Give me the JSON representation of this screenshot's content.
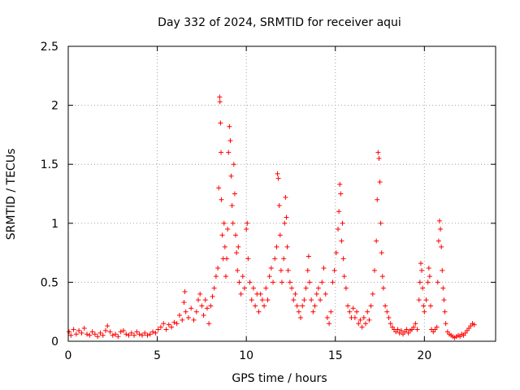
{
  "chart_data": {
    "type": "scatter",
    "title": "Day 332 of 2024, SRMTID for receiver aqui",
    "xlabel": "GPS time / hours",
    "ylabel": "SRMTID / TECUs",
    "xlim": [
      0,
      24
    ],
    "ylim": [
      0,
      2.5
    ],
    "xticks": [
      0,
      5,
      10,
      15,
      20
    ],
    "xtick_labels": [
      "0",
      "5",
      "10",
      "15",
      "20"
    ],
    "yticks": [
      0,
      0.5,
      1,
      1.5,
      2,
      2.5
    ],
    "ytick_labels": [
      "0",
      "0.5",
      "1",
      "1.5",
      "2",
      "2.5"
    ],
    "grid": true,
    "marker": "+",
    "series": [
      {
        "name": "SRMTID",
        "color": "#ff0000",
        "points": [
          [
            0.05,
            0.08
          ],
          [
            0.15,
            0.05
          ],
          [
            0.3,
            0.1
          ],
          [
            0.45,
            0.06
          ],
          [
            0.6,
            0.09
          ],
          [
            0.75,
            0.07
          ],
          [
            0.9,
            0.11
          ],
          [
            1.05,
            0.06
          ],
          [
            1.2,
            0.05
          ],
          [
            1.35,
            0.08
          ],
          [
            1.5,
            0.06
          ],
          [
            1.65,
            0.04
          ],
          [
            1.8,
            0.07
          ],
          [
            1.95,
            0.05
          ],
          [
            2.1,
            0.09
          ],
          [
            2.2,
            0.13
          ],
          [
            2.35,
            0.08
          ],
          [
            2.5,
            0.05
          ],
          [
            2.65,
            0.06
          ],
          [
            2.8,
            0.04
          ],
          [
            2.95,
            0.08
          ],
          [
            3.1,
            0.09
          ],
          [
            3.25,
            0.06
          ],
          [
            3.4,
            0.05
          ],
          [
            3.55,
            0.07
          ],
          [
            3.7,
            0.05
          ],
          [
            3.85,
            0.08
          ],
          [
            4.0,
            0.06
          ],
          [
            4.15,
            0.05
          ],
          [
            4.3,
            0.07
          ],
          [
            4.45,
            0.05
          ],
          [
            4.6,
            0.06
          ],
          [
            4.75,
            0.08
          ],
          [
            4.9,
            0.07
          ],
          [
            5.05,
            0.1
          ],
          [
            5.2,
            0.12
          ],
          [
            5.35,
            0.15
          ],
          [
            5.5,
            0.1
          ],
          [
            5.65,
            0.14
          ],
          [
            5.8,
            0.12
          ],
          [
            5.95,
            0.16
          ],
          [
            6.1,
            0.15
          ],
          [
            6.25,
            0.22
          ],
          [
            6.4,
            0.18
          ],
          [
            6.5,
            0.33
          ],
          [
            6.55,
            0.42
          ],
          [
            6.6,
            0.25
          ],
          [
            6.75,
            0.2
          ],
          [
            6.9,
            0.28
          ],
          [
            7.05,
            0.18
          ],
          [
            7.2,
            0.25
          ],
          [
            7.3,
            0.35
          ],
          [
            7.4,
            0.4
          ],
          [
            7.5,
            0.3
          ],
          [
            7.6,
            0.22
          ],
          [
            7.7,
            0.35
          ],
          [
            7.8,
            0.28
          ],
          [
            7.9,
            0.15
          ],
          [
            8.0,
            0.3
          ],
          [
            8.1,
            0.38
          ],
          [
            8.2,
            0.45
          ],
          [
            8.3,
            0.55
          ],
          [
            8.4,
            0.62
          ],
          [
            8.45,
            1.3
          ],
          [
            8.5,
            2.07
          ],
          [
            8.52,
            2.03
          ],
          [
            8.55,
            1.85
          ],
          [
            8.58,
            1.6
          ],
          [
            8.6,
            1.2
          ],
          [
            8.65,
            0.9
          ],
          [
            8.7,
            0.7
          ],
          [
            8.75,
            1.0
          ],
          [
            8.8,
            0.8
          ],
          [
            8.85,
            0.55
          ],
          [
            8.9,
            0.7
          ],
          [
            8.95,
            0.95
          ],
          [
            9.0,
            1.6
          ],
          [
            9.05,
            1.82
          ],
          [
            9.1,
            1.7
          ],
          [
            9.15,
            1.4
          ],
          [
            9.2,
            1.15
          ],
          [
            9.25,
            1.0
          ],
          [
            9.3,
            1.5
          ],
          [
            9.35,
            1.25
          ],
          [
            9.4,
            0.9
          ],
          [
            9.45,
            0.75
          ],
          [
            9.5,
            0.6
          ],
          [
            9.55,
            0.8
          ],
          [
            9.6,
            0.5
          ],
          [
            9.7,
            0.4
          ],
          [
            9.8,
            0.55
          ],
          [
            9.9,
            0.45
          ],
          [
            10.0,
            0.95
          ],
          [
            10.05,
            1.0
          ],
          [
            10.1,
            0.7
          ],
          [
            10.2,
            0.5
          ],
          [
            10.3,
            0.35
          ],
          [
            10.4,
            0.45
          ],
          [
            10.5,
            0.3
          ],
          [
            10.6,
            0.4
          ],
          [
            10.7,
            0.25
          ],
          [
            10.8,
            0.4
          ],
          [
            10.9,
            0.35
          ],
          [
            11.0,
            0.3
          ],
          [
            11.1,
            0.45
          ],
          [
            11.2,
            0.35
          ],
          [
            11.3,
            0.55
          ],
          [
            11.4,
            0.62
          ],
          [
            11.5,
            0.5
          ],
          [
            11.6,
            0.7
          ],
          [
            11.7,
            0.8
          ],
          [
            11.75,
            1.42
          ],
          [
            11.8,
            1.38
          ],
          [
            11.85,
            1.15
          ],
          [
            11.9,
            0.9
          ],
          [
            11.95,
            0.6
          ],
          [
            12.0,
            0.5
          ],
          [
            12.1,
            0.7
          ],
          [
            12.15,
            1.0
          ],
          [
            12.2,
            1.22
          ],
          [
            12.25,
            1.05
          ],
          [
            12.3,
            0.8
          ],
          [
            12.35,
            0.6
          ],
          [
            12.45,
            0.5
          ],
          [
            12.55,
            0.45
          ],
          [
            12.65,
            0.35
          ],
          [
            12.75,
            0.4
          ],
          [
            12.85,
            0.3
          ],
          [
            12.95,
            0.25
          ],
          [
            13.05,
            0.2
          ],
          [
            13.15,
            0.3
          ],
          [
            13.25,
            0.35
          ],
          [
            13.35,
            0.45
          ],
          [
            13.45,
            0.6
          ],
          [
            13.5,
            0.72
          ],
          [
            13.55,
            0.5
          ],
          [
            13.65,
            0.35
          ],
          [
            13.75,
            0.25
          ],
          [
            13.85,
            0.3
          ],
          [
            13.95,
            0.4
          ],
          [
            14.05,
            0.45
          ],
          [
            14.15,
            0.35
          ],
          [
            14.25,
            0.5
          ],
          [
            14.35,
            0.62
          ],
          [
            14.45,
            0.4
          ],
          [
            14.55,
            0.2
          ],
          [
            14.65,
            0.15
          ],
          [
            14.75,
            0.25
          ],
          [
            14.85,
            0.5
          ],
          [
            14.95,
            0.6
          ],
          [
            15.05,
            0.75
          ],
          [
            15.15,
            0.95
          ],
          [
            15.2,
            1.1
          ],
          [
            15.25,
            1.33
          ],
          [
            15.3,
            1.25
          ],
          [
            15.35,
            0.85
          ],
          [
            15.4,
            1.0
          ],
          [
            15.45,
            0.7
          ],
          [
            15.5,
            0.55
          ],
          [
            15.6,
            0.45
          ],
          [
            15.7,
            0.3
          ],
          [
            15.8,
            0.25
          ],
          [
            15.9,
            0.2
          ],
          [
            16.0,
            0.28
          ],
          [
            16.1,
            0.2
          ],
          [
            16.2,
            0.25
          ],
          [
            16.3,
            0.15
          ],
          [
            16.4,
            0.18
          ],
          [
            16.5,
            0.12
          ],
          [
            16.6,
            0.2
          ],
          [
            16.7,
            0.15
          ],
          [
            16.8,
            0.25
          ],
          [
            16.9,
            0.18
          ],
          [
            17.0,
            0.3
          ],
          [
            17.1,
            0.4
          ],
          [
            17.2,
            0.6
          ],
          [
            17.3,
            0.85
          ],
          [
            17.35,
            1.2
          ],
          [
            17.4,
            1.6
          ],
          [
            17.45,
            1.55
          ],
          [
            17.5,
            1.35
          ],
          [
            17.55,
            1.0
          ],
          [
            17.6,
            0.75
          ],
          [
            17.65,
            0.55
          ],
          [
            17.7,
            0.45
          ],
          [
            17.8,
            0.3
          ],
          [
            17.9,
            0.25
          ],
          [
            18.0,
            0.2
          ],
          [
            18.1,
            0.15
          ],
          [
            18.2,
            0.12
          ],
          [
            18.3,
            0.1
          ],
          [
            18.4,
            0.08
          ],
          [
            18.5,
            0.1
          ],
          [
            18.6,
            0.07
          ],
          [
            18.7,
            0.09
          ],
          [
            18.8,
            0.06
          ],
          [
            18.9,
            0.08
          ],
          [
            19.0,
            0.1
          ],
          [
            19.1,
            0.07
          ],
          [
            19.2,
            0.09
          ],
          [
            19.3,
            0.1
          ],
          [
            19.4,
            0.12
          ],
          [
            19.5,
            0.15
          ],
          [
            19.6,
            0.1
          ],
          [
            19.7,
            0.35
          ],
          [
            19.75,
            0.5
          ],
          [
            19.8,
            0.66
          ],
          [
            19.85,
            0.6
          ],
          [
            19.9,
            0.45
          ],
          [
            19.95,
            0.3
          ],
          [
            20.0,
            0.25
          ],
          [
            20.1,
            0.35
          ],
          [
            20.2,
            0.5
          ],
          [
            20.25,
            0.62
          ],
          [
            20.3,
            0.55
          ],
          [
            20.35,
            0.3
          ],
          [
            20.4,
            0.1
          ],
          [
            20.5,
            0.08
          ],
          [
            20.6,
            0.1
          ],
          [
            20.7,
            0.12
          ],
          [
            20.75,
            0.5
          ],
          [
            20.8,
            0.85
          ],
          [
            20.85,
            1.02
          ],
          [
            20.9,
            0.95
          ],
          [
            20.95,
            0.8
          ],
          [
            21.0,
            0.6
          ],
          [
            21.05,
            0.45
          ],
          [
            21.1,
            0.35
          ],
          [
            21.15,
            0.25
          ],
          [
            21.2,
            0.15
          ],
          [
            21.3,
            0.08
          ],
          [
            21.4,
            0.06
          ],
          [
            21.5,
            0.05
          ],
          [
            21.6,
            0.04
          ],
          [
            21.7,
            0.03
          ],
          [
            21.8,
            0.04
          ],
          [
            21.9,
            0.05
          ],
          [
            22.0,
            0.04
          ],
          [
            22.1,
            0.06
          ],
          [
            22.2,
            0.05
          ],
          [
            22.3,
            0.07
          ],
          [
            22.4,
            0.09
          ],
          [
            22.5,
            0.11
          ],
          [
            22.6,
            0.13
          ],
          [
            22.7,
            0.15
          ],
          [
            22.8,
            0.14
          ]
        ]
      }
    ]
  }
}
